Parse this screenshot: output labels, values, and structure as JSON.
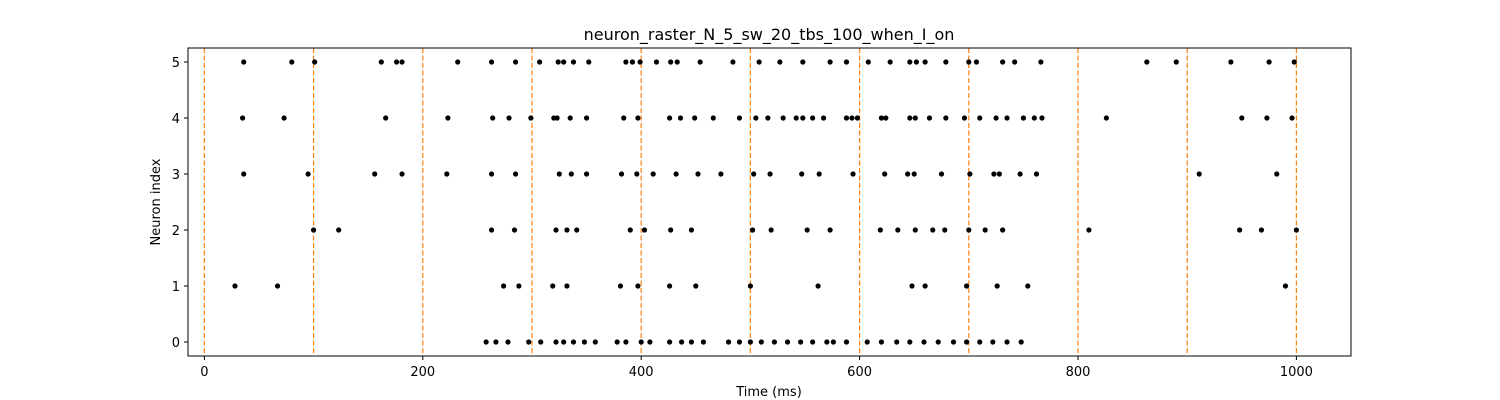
{
  "chart_data": {
    "type": "scatter",
    "title": "neuron_raster_N_5_sw_20_tbs_100_when_I_on",
    "xlabel": "Time (ms)",
    "ylabel": "Neuron index",
    "xlim": [
      -15,
      1050
    ],
    "ylim": [
      -0.25,
      5.25
    ],
    "xticks": [
      0,
      200,
      400,
      600,
      800,
      1000
    ],
    "yticks": [
      0,
      1,
      2,
      3,
      4,
      5
    ],
    "grid": false,
    "marker_color": "#000000",
    "vline_color": "#ff7f0e",
    "vlines": [
      0,
      100,
      200,
      300,
      400,
      500,
      600,
      700,
      800,
      900,
      1000
    ],
    "series": [
      {
        "neuron": 0,
        "spikes": [
          258,
          267,
          278,
          297,
          308,
          322,
          329,
          338,
          348,
          358,
          378,
          386,
          400,
          408,
          426,
          437,
          446,
          457,
          480,
          490,
          500,
          510,
          522,
          534,
          546,
          557,
          570,
          576,
          588,
          607,
          620,
          634,
          646,
          659,
          672,
          686,
          698,
          710,
          722,
          735,
          748
        ]
      },
      {
        "neuron": 1,
        "spikes": [
          28,
          67,
          274,
          288,
          319,
          332,
          381,
          397,
          426,
          450,
          500,
          562,
          648,
          660,
          698,
          726,
          754,
          990
        ]
      },
      {
        "neuron": 2,
        "spikes": [
          100,
          123,
          263,
          284,
          322,
          332,
          341,
          390,
          403,
          427,
          446,
          502,
          519,
          552,
          573,
          619,
          635,
          651,
          667,
          678,
          700,
          715,
          731,
          810,
          948,
          968,
          1000
        ]
      },
      {
        "neuron": 3,
        "spikes": [
          36,
          95,
          156,
          181,
          222,
          263,
          285,
          325,
          336,
          350,
          382,
          396,
          411,
          432,
          452,
          473,
          503,
          518,
          547,
          563,
          594,
          623,
          644,
          650,
          675,
          701,
          723,
          728,
          747,
          762,
          911,
          982
        ]
      },
      {
        "neuron": 4,
        "spikes": [
          35,
          73,
          166,
          223,
          264,
          279,
          299,
          320,
          323,
          335,
          350,
          384,
          397,
          426,
          436,
          449,
          466,
          490,
          505,
          516,
          530,
          542,
          548,
          557,
          567,
          588,
          593,
          598,
          620,
          624,
          646,
          651,
          664,
          679,
          696,
          710,
          725,
          735,
          750,
          760,
          767,
          826,
          950,
          973,
          996
        ]
      },
      {
        "neuron": 5,
        "spikes": [
          36,
          80,
          101,
          162,
          176,
          181,
          232,
          263,
          285,
          307,
          324,
          329,
          338,
          352,
          386,
          392,
          399,
          414,
          427,
          433,
          454,
          484,
          508,
          527,
          548,
          573,
          588,
          608,
          628,
          646,
          652,
          660,
          679,
          700,
          707,
          731,
          742,
          766,
          863,
          890,
          940,
          975,
          998
        ]
      }
    ]
  }
}
